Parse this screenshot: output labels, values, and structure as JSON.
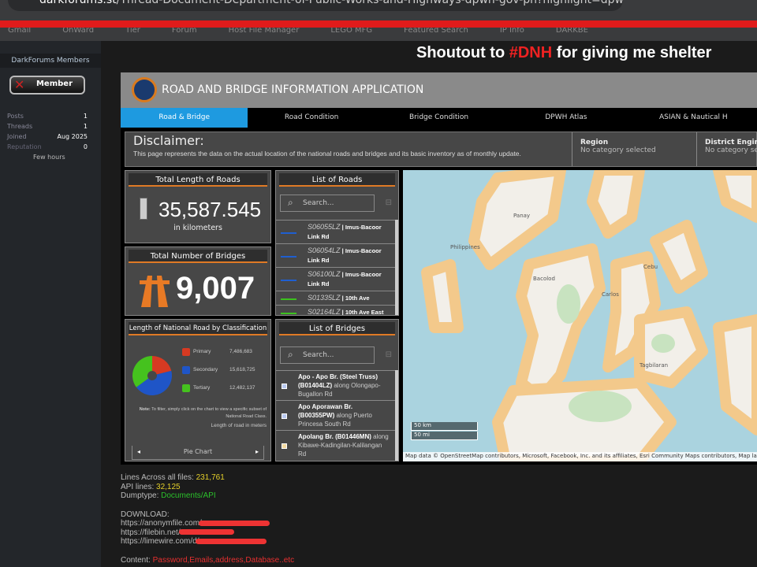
{
  "browser": {
    "url_host": "darkforums.st",
    "url_path": "/Thread-Document-Department-of-Public-Works-and-Highways-dpwh-gov-ph?highlight=dpwh",
    "bookmarks": [
      "Gmail",
      "OnWard",
      "Tier",
      "Forum",
      "Host File Manager",
      "LEGO MFG",
      "Featured Search",
      "IP Info",
      "DARKBE"
    ]
  },
  "sidebar": {
    "title": "DarkForums Members",
    "badge": "Member",
    "stats": [
      {
        "label": "Posts",
        "value": "1"
      },
      {
        "label": "Threads",
        "value": "1"
      },
      {
        "label": "Joined",
        "value": "Aug 2025"
      },
      {
        "label": "Reputation",
        "value": "0"
      }
    ],
    "last_seen": "Few hours"
  },
  "shoutout": {
    "pre": "Shoutout to ",
    "tag": "#DNH",
    "post": " for giving me shelter"
  },
  "app": {
    "title": "ROAD AND BRIDGE INFORMATION APPLICATION",
    "tabs": [
      "Road & Bridge",
      "Road Condition",
      "Bridge Condition",
      "DPWH Atlas",
      "ASIAN & Nautical H"
    ],
    "active_tab": 0,
    "disclaimer": {
      "title": "Disclaimer:",
      "text": "This page represents the data on the actual location of the national roads and bridges and its basic inventory as of monthly update."
    },
    "filters": [
      {
        "label": "Region",
        "value": "No category selected"
      },
      {
        "label": "District Engineer",
        "value": "No category sele"
      }
    ],
    "roads_total": {
      "title": "Total Length of Roads",
      "value": "35,587.545",
      "unit": "in kilometers"
    },
    "bridges_total": {
      "title": "Total Number of Bridges",
      "value": "9,007"
    },
    "road_list": {
      "title": "List of Roads",
      "search_placeholder": "Search...",
      "items": [
        {
          "code": "S06055LZ",
          "name": "Imus-Bacoor Link Rd",
          "color": "#1f5fd0"
        },
        {
          "code": "S06054LZ",
          "name": "Imus-Bacoor Link Rd",
          "color": "#1f5fd0"
        },
        {
          "code": "S06100LZ",
          "name": "Imus-Bacoor Link Rd",
          "color": "#1f5fd0"
        },
        {
          "code": "S01335LZ",
          "name": "10th Ave",
          "color": "#3cc21e"
        },
        {
          "code": "S02164LZ",
          "name": "10th Ave East",
          "color": "#3cc21e"
        }
      ]
    },
    "bridge_list": {
      "title": "List of Bridges",
      "search_placeholder": "Search...",
      "items": [
        {
          "name": "Apo - Apo Br. (Steel Truss) (B01404LZ)",
          "along": " along Olongapo-Bugallon Rd",
          "color": "#b8c8f0"
        },
        {
          "name": "Apo Aporawan Br. (B00355PW)",
          "along": " along Puerto Princesa South Rd",
          "color": "#b8c8f0"
        },
        {
          "name": "Apolang Br. (B01446MN)",
          "along": " along Kibawe-Kadingilan-Kalilangan Rd",
          "color": "#f3d9a0"
        }
      ]
    },
    "map": {
      "attribution": "Map data © OpenStreetMap contributors, Microsoft, Facebook, Inc. and its affiliates, Esri Community Maps contributors, Map la",
      "scale_km": "50 km",
      "scale_mi": "50 mi",
      "labels": [
        "Panay",
        "Philippines",
        "Cebu",
        "Bacolod",
        "Carlos",
        "Tagbilaran"
      ]
    }
  },
  "chart_data": {
    "type": "pie",
    "title": "Length of National Road by Classification",
    "categories": [
      "Primary",
      "Secondary",
      "Tertiary"
    ],
    "values": [
      7486683,
      15618725,
      12482137
    ],
    "labels": [
      "7,486,683",
      "15,618,725",
      "12,482,137"
    ],
    "colors": [
      "#d63a22",
      "#1f55c7",
      "#45c21e"
    ],
    "donut": true,
    "legend": "right",
    "note_bold": "Note:",
    "note": " To filter, simply click on the chart to view a specific subset of National Road Class.",
    "unit_note": "Length of road in meters",
    "footer": "Pie Chart"
  },
  "post": {
    "lines_label": "Lines Across all files: ",
    "lines": "231,761",
    "api_label": "API lines: ",
    "api": "32,125",
    "dump_label": "Dumptype: ",
    "dump": "Documents/API",
    "download": "DOWNLOAD:",
    "links": [
      "https://anonymfile.com/",
      "https://filebin.net/t",
      "https://limewire.com/d/"
    ],
    "content_label": "Content: ",
    "content": "Password,Emails,address,Database..etc"
  }
}
